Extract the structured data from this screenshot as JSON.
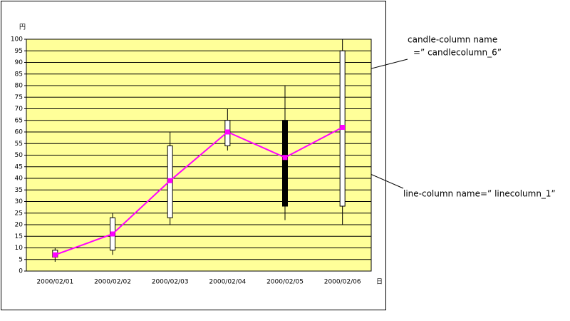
{
  "chart_data": {
    "type": "candlestick",
    "y_label": "円",
    "x_label": "日",
    "categories": [
      "2000/02/01",
      "2000/02/02",
      "2000/02/03",
      "2000/02/04",
      "2000/02/05",
      "2000/02/06"
    ],
    "series": [
      {
        "type": "candlestick",
        "up_color": "#ffffff",
        "down_color": "#000000",
        "open": [
          6,
          9,
          23,
          54,
          65,
          28
        ],
        "high": [
          10,
          25,
          60,
          70,
          80,
          100
        ],
        "low": [
          4,
          7,
          20,
          52,
          22,
          20
        ],
        "close": [
          9,
          23,
          54,
          65,
          28,
          95
        ]
      },
      {
        "type": "line",
        "color": "#ff00ff",
        "values": [
          7,
          16,
          39,
          60,
          49,
          62
        ]
      }
    ],
    "ylim": [
      0,
      100
    ],
    "yticks": [
      0,
      5,
      10,
      15,
      20,
      25,
      30,
      35,
      40,
      45,
      50,
      55,
      60,
      65,
      70,
      75,
      80,
      85,
      90,
      95,
      100
    ],
    "grid": true,
    "background": "#ffff99",
    "annotations": [
      "candle-column name",
      "=” candlecolumn_6”",
      "line-column name=” linecolumn_1”"
    ]
  }
}
